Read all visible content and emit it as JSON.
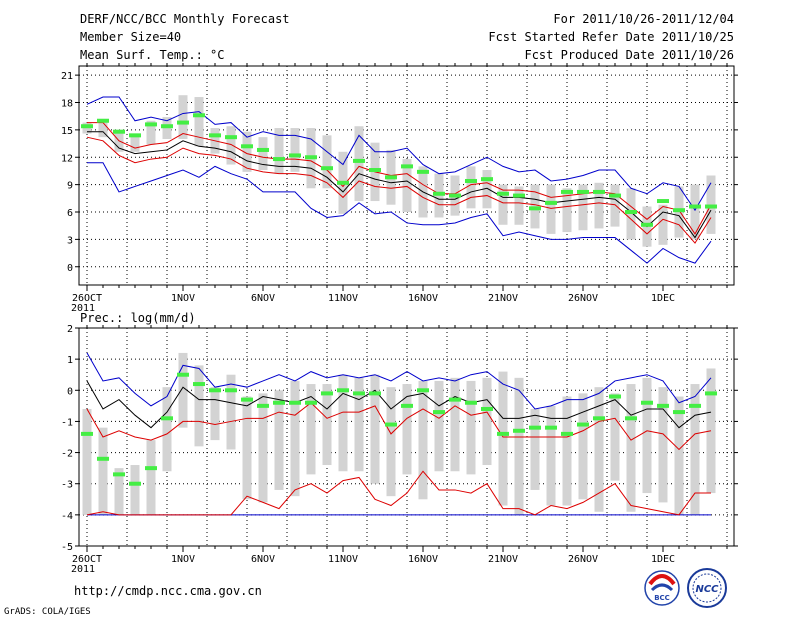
{
  "header": {
    "left": [
      "DERF/NCC/BCC Monthly Forecast",
      "Member Size=40",
      "Mean Surf. Temp.: °C"
    ],
    "right": [
      "For 2011/10/26-2011/12/04",
      "Fcst Started Refer Date 2011/10/25",
      "Fcst Produced Date 2011/10/26"
    ]
  },
  "footer": {
    "url": "http://cmdp.ncc.cma.gov.cn",
    "grads": "GrADS: COLA/IGES",
    "logo_bcc": "BCC",
    "logo_ncc": "NCC"
  },
  "colors": {
    "box": "#d3d3d3",
    "envelope": "#0000cc",
    "spread": "#dd0000",
    "mean": "#000000",
    "obs": "#44ee44",
    "grid": "#000000"
  },
  "chart_data": [
    {
      "type": "line",
      "title": "Mean Surf. Temp.: °C",
      "ylim": [
        -2,
        22
      ],
      "yticks": [
        0,
        3,
        6,
        9,
        12,
        15,
        18,
        21
      ],
      "xticks": [
        {
          "day": 0,
          "label": "26OCT",
          "sublabel": "2011"
        },
        {
          "day": 6,
          "label": "1NOV"
        },
        {
          "day": 11,
          "label": "6NOV"
        },
        {
          "day": 16,
          "label": "11NOV"
        },
        {
          "day": 21,
          "label": "16NOV"
        },
        {
          "day": 26,
          "label": "21NOV"
        },
        {
          "day": 31,
          "label": "26NOV"
        },
        {
          "day": 36,
          "label": "1DEC"
        }
      ],
      "days": 40,
      "series": {
        "box_high": [
          15.8,
          16.2,
          15.0,
          14.6,
          16.0,
          16.4,
          18.8,
          18.6,
          15.2,
          15.4,
          14.8,
          14.2,
          15.2,
          15.2,
          15.2,
          14.4,
          12.6,
          15.4,
          13.6,
          12.8,
          11.8,
          11.0,
          10.2,
          10.0,
          11.0,
          10.6,
          9.0,
          8.8,
          9.0,
          9.0,
          8.6,
          9.0,
          9.2,
          9.0,
          8.6,
          6.6,
          6.8,
          8.8,
          9.0,
          10.0
        ],
        "box_low": [
          14.6,
          14.2,
          12.6,
          12.6,
          13.4,
          14.0,
          14.0,
          13.2,
          12.4,
          11.2,
          10.4,
          10.6,
          10.2,
          10.4,
          8.6,
          8.6,
          5.8,
          7.2,
          7.2,
          6.8,
          6.0,
          5.4,
          5.4,
          5.6,
          6.4,
          6.4,
          4.6,
          4.6,
          4.2,
          3.6,
          3.8,
          4.0,
          4.2,
          4.4,
          3.0,
          2.2,
          2.4,
          3.2,
          3.0,
          3.6
        ],
        "blue_upper": [
          17.8,
          18.6,
          18.6,
          16.0,
          16.4,
          16.0,
          16.8,
          17.0,
          15.6,
          15.8,
          14.2,
          14.8,
          14.4,
          14.4,
          14.0,
          12.6,
          11.2,
          14.4,
          12.6,
          12.6,
          13.0,
          11.2,
          10.2,
          10.4,
          11.2,
          12.0,
          11.0,
          10.4,
          10.6,
          9.4,
          9.6,
          10.0,
          10.6,
          10.6,
          8.6,
          8.0,
          9.2,
          8.8,
          6.2,
          9.2
        ],
        "red_upper": [
          15.8,
          15.8,
          13.8,
          13.0,
          13.4,
          13.6,
          14.6,
          14.2,
          13.8,
          13.4,
          12.4,
          12.0,
          11.8,
          11.8,
          11.6,
          10.6,
          8.8,
          11.0,
          10.4,
          10.0,
          10.2,
          9.0,
          8.0,
          8.0,
          9.0,
          9.2,
          8.4,
          8.4,
          8.2,
          7.6,
          7.8,
          8.0,
          8.2,
          8.0,
          6.6,
          5.2,
          6.6,
          6.2,
          3.6,
          6.8
        ],
        "mean": [
          14.8,
          14.8,
          13.0,
          12.4,
          12.6,
          12.8,
          13.8,
          13.2,
          13.0,
          12.6,
          11.6,
          11.2,
          11.0,
          11.0,
          10.8,
          9.8,
          8.2,
          10.2,
          9.6,
          9.2,
          9.4,
          8.2,
          7.4,
          7.4,
          8.2,
          8.6,
          7.6,
          7.6,
          7.4,
          7.0,
          7.2,
          7.4,
          7.6,
          7.4,
          6.0,
          4.4,
          6.0,
          5.6,
          3.2,
          6.2
        ],
        "red_lower": [
          14.2,
          13.8,
          12.2,
          11.4,
          11.8,
          12.0,
          13.0,
          12.4,
          12.2,
          11.8,
          10.8,
          10.4,
          10.2,
          10.2,
          10.0,
          9.2,
          7.6,
          9.4,
          8.8,
          8.6,
          8.8,
          7.6,
          6.8,
          6.8,
          7.6,
          7.8,
          7.0,
          7.0,
          6.8,
          6.4,
          6.6,
          6.8,
          7.0,
          6.8,
          5.2,
          3.6,
          5.2,
          4.6,
          2.6,
          5.4
        ],
        "blue_lower": [
          11.4,
          11.4,
          8.2,
          8.8,
          9.4,
          10.0,
          10.6,
          9.8,
          11.0,
          10.2,
          9.6,
          8.2,
          8.2,
          8.2,
          6.4,
          5.4,
          5.6,
          7.0,
          5.8,
          6.0,
          4.8,
          4.6,
          4.6,
          4.8,
          5.4,
          5.8,
          3.4,
          3.8,
          3.4,
          3.0,
          3.0,
          3.2,
          3.2,
          3.2,
          1.8,
          0.4,
          2.0,
          1.0,
          0.4,
          2.8
        ],
        "obs": [
          15.4,
          16.0,
          14.8,
          14.4,
          15.6,
          15.4,
          15.8,
          16.6,
          14.4,
          14.2,
          13.2,
          12.8,
          11.8,
          12.2,
          12.0,
          10.8,
          9.2,
          11.6,
          10.6,
          9.8,
          11.0,
          10.4,
          8.0,
          7.8,
          9.4,
          9.6,
          8.0,
          7.8,
          6.4,
          7.0,
          8.2,
          8.2,
          8.2,
          7.8,
          6.0,
          4.6,
          7.2,
          6.2,
          6.6,
          6.6
        ]
      }
    },
    {
      "type": "line",
      "title": "Prec.: log(mm/d)",
      "ylim": [
        -5,
        2
      ],
      "yticks": [
        -5,
        -4,
        -3,
        -2,
        -1,
        0,
        1,
        2
      ],
      "xticks": [
        {
          "day": 0,
          "label": "26OCT",
          "sublabel": "2011"
        },
        {
          "day": 6,
          "label": "1NOV"
        },
        {
          "day": 11,
          "label": "6NOV"
        },
        {
          "day": 16,
          "label": "11NOV"
        },
        {
          "day": 21,
          "label": "16NOV"
        },
        {
          "day": 26,
          "label": "21NOV"
        },
        {
          "day": 31,
          "label": "26NOV"
        },
        {
          "day": 36,
          "label": "1DEC"
        }
      ],
      "days": 40,
      "series": {
        "box_high": [
          -0.6,
          -1.2,
          -2.5,
          -2.4,
          -1.6,
          0.1,
          1.2,
          0.8,
          0.1,
          0.5,
          -0.2,
          -0.1,
          0.0,
          0.3,
          0.2,
          0.2,
          0.5,
          0.4,
          0.5,
          0.1,
          0.2,
          0.3,
          0.3,
          0.4,
          0.3,
          0.4,
          0.6,
          0.4,
          -0.6,
          -0.5,
          -0.2,
          -0.1,
          0.1,
          -0.1,
          0.2,
          0.4,
          0.1,
          -0.2,
          0.2,
          0.7
        ],
        "box_low": [
          -4.0,
          -4.0,
          -4.0,
          -4.0,
          -4.0,
          -2.6,
          -1.2,
          -1.8,
          -1.6,
          -1.9,
          -3.5,
          -3.6,
          -3.2,
          -3.4,
          -2.7,
          -2.4,
          -2.6,
          -2.6,
          -3.0,
          -3.4,
          -2.7,
          -3.5,
          -2.6,
          -2.6,
          -2.7,
          -2.4,
          -3.7,
          -4.0,
          -3.2,
          -3.7,
          -3.7,
          -3.5,
          -3.9,
          -2.9,
          -3.9,
          -3.3,
          -3.6,
          -4.0,
          -4.0,
          -3.3
        ],
        "blue_upper": [
          1.2,
          0.3,
          0.4,
          -0.1,
          -0.5,
          -0.2,
          0.8,
          0.7,
          0.1,
          0.2,
          0.1,
          0.3,
          0.5,
          0.3,
          0.6,
          0.4,
          0.5,
          0.4,
          0.5,
          0.3,
          0.6,
          0.3,
          0.4,
          0.3,
          0.5,
          0.6,
          0.2,
          0.0,
          -0.6,
          -0.5,
          -0.3,
          -0.3,
          -0.1,
          0.3,
          0.4,
          0.5,
          0.3,
          -0.4,
          -0.2,
          0.4
        ],
        "red_upper": [
          -0.6,
          -1.5,
          -1.3,
          -1.5,
          -1.6,
          -1.4,
          -1.0,
          -1.0,
          -1.1,
          -1.0,
          -0.9,
          -0.9,
          -0.7,
          -0.8,
          -0.4,
          -0.9,
          -0.7,
          -0.7,
          -0.5,
          -1.4,
          -0.9,
          -0.6,
          -0.9,
          -0.5,
          -0.8,
          -0.7,
          -1.5,
          -1.5,
          -1.5,
          -1.5,
          -1.5,
          -1.3,
          -1.0,
          -0.9,
          -1.6,
          -1.3,
          -1.4,
          -1.9,
          -1.4,
          -1.3
        ],
        "mean": [
          0.3,
          -0.6,
          -0.3,
          -0.8,
          -1.2,
          -0.7,
          0.1,
          -0.3,
          -0.3,
          -0.4,
          -0.5,
          -0.2,
          -0.3,
          -0.4,
          -0.2,
          -0.6,
          -0.1,
          -0.3,
          0.0,
          -0.6,
          -0.2,
          -0.1,
          -0.5,
          -0.2,
          -0.4,
          -0.3,
          -0.9,
          -0.9,
          -0.8,
          -0.9,
          -0.9,
          -0.7,
          -0.5,
          -0.3,
          -0.8,
          -0.6,
          -0.6,
          -1.2,
          -0.8,
          -0.7
        ],
        "red_lower": [
          -4.0,
          -3.9,
          -4.0,
          -4.0,
          -4.0,
          -4.0,
          -4.0,
          -4.0,
          -4.0,
          -4.0,
          -3.4,
          -3.6,
          -3.8,
          -3.2,
          -3.0,
          -3.3,
          -2.9,
          -2.8,
          -3.5,
          -3.7,
          -3.3,
          -2.6,
          -3.2,
          -3.2,
          -3.3,
          -3.0,
          -3.8,
          -3.8,
          -4.0,
          -3.7,
          -3.8,
          -3.6,
          -3.3,
          -3.0,
          -3.7,
          -3.8,
          -3.9,
          -4.0,
          -3.3,
          -3.3
        ],
        "blue_lower": [
          -4.0,
          -4.0,
          -4.0,
          -4.0,
          -4.0,
          -4.0,
          -4.0,
          -4.0,
          -4.0,
          -4.0,
          -4.0,
          -4.0,
          -4.0,
          -4.0,
          -4.0,
          -4.0,
          -4.0,
          -4.0,
          -4.0,
          -4.0,
          -4.0,
          -4.0,
          -4.0,
          -4.0,
          -4.0,
          -4.0,
          -4.0,
          -4.0,
          -4.0,
          -4.0,
          -4.0,
          -4.0,
          -4.0,
          -4.0,
          -4.0,
          -4.0,
          -4.0,
          -4.0,
          -4.0,
          -4.0
        ],
        "obs": [
          -1.4,
          -2.2,
          -2.7,
          -3.0,
          -2.5,
          -0.9,
          0.5,
          0.2,
          0.0,
          0.0,
          -0.3,
          -0.5,
          -0.4,
          -0.4,
          -0.4,
          -0.1,
          0.0,
          -0.1,
          -0.1,
          -1.1,
          -0.5,
          0.0,
          -0.7,
          -0.3,
          -0.4,
          -0.6,
          -1.4,
          -1.3,
          -1.2,
          -1.2,
          -1.4,
          -1.1,
          -0.9,
          -0.2,
          -0.9,
          -0.4,
          -0.5,
          -0.7,
          -0.5,
          -0.1
        ]
      }
    }
  ]
}
